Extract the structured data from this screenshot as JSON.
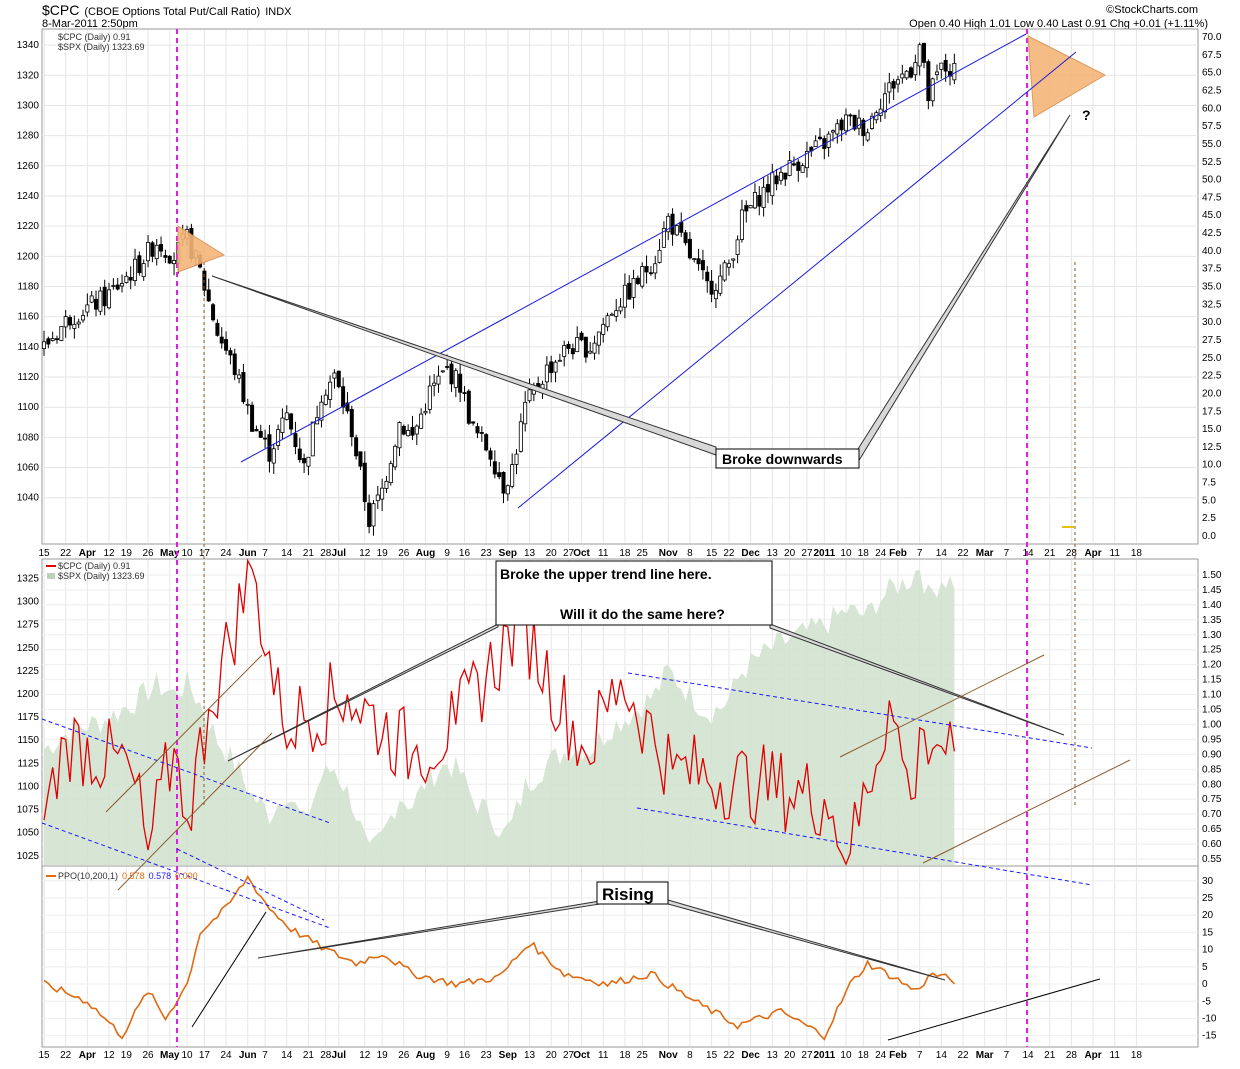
{
  "header": {
    "symbol": "$CPC",
    "description": "(CBOE Options Total Put/Call Ratio)",
    "exchange": "INDX",
    "datetime": "8-Mar-2011 2:50pm",
    "quote": "Open 0.40  High 1.01  Low 0.40  Last 0.91  Chg +0.01 (+1.11%)",
    "brand": "©StockCharts.com"
  },
  "colors": {
    "candle": "#000000",
    "trend_blue": "#1a1adb",
    "dashed_blue": "#1a1aff",
    "magenta": "#e020e0",
    "cpc_line": "#e00000",
    "spx_area": "#cfe0cc",
    "ppo_line": "#e06a10",
    "brown": "#8b5a2b",
    "pennant": "#f5b57a"
  },
  "chart_data": [
    {
      "id": "price-panel",
      "type": "candlestick",
      "legend": [
        "$CPC (Daily) 0.91",
        "$SPX (Daily) 1323.69"
      ],
      "left_axis": {
        "min": 1010,
        "max": 1350,
        "ticks": [
          1040,
          1060,
          1080,
          1100,
          1120,
          1140,
          1160,
          1180,
          1200,
          1220,
          1240,
          1260,
          1280,
          1300,
          1320,
          1340
        ]
      },
      "right_axis": {
        "ticks": [
          "70.0",
          "67.5",
          "65.0",
          "62.5",
          "60.0",
          "57.5",
          "55.0",
          "52.5",
          "50.0",
          "47.5",
          "45.0",
          "42.5",
          "40.0",
          "37.5",
          "35.0",
          "32.5",
          "30.0",
          "27.5",
          "25.0",
          "22.5",
          "20.0",
          "17.5",
          "15.0",
          "12.5",
          "10.0",
          "7.5",
          "5.0",
          "2.5",
          "0.0"
        ]
      },
      "waypoints": [
        {
          "d": 0,
          "v": 1140
        },
        {
          "d": 6,
          "v": 1160
        },
        {
          "d": 14,
          "v": 1172
        },
        {
          "d": 22,
          "v": 1195
        },
        {
          "d": 26,
          "v": 1210
        },
        {
          "d": 30,
          "v": 1200
        },
        {
          "d": 33,
          "v": 1212
        },
        {
          "d": 36,
          "v": 1190
        },
        {
          "d": 40,
          "v": 1150
        },
        {
          "d": 44,
          "v": 1125
        },
        {
          "d": 48,
          "v": 1090
        },
        {
          "d": 52,
          "v": 1070
        },
        {
          "d": 56,
          "v": 1095
        },
        {
          "d": 60,
          "v": 1060
        },
        {
          "d": 64,
          "v": 1110
        },
        {
          "d": 67,
          "v": 1120
        },
        {
          "d": 71,
          "v": 1085
        },
        {
          "d": 75,
          "v": 1025
        },
        {
          "d": 78,
          "v": 1045
        },
        {
          "d": 82,
          "v": 1090
        },
        {
          "d": 85,
          "v": 1080
        },
        {
          "d": 89,
          "v": 1110
        },
        {
          "d": 93,
          "v": 1125
        },
        {
          "d": 96,
          "v": 1115
        },
        {
          "d": 99,
          "v": 1085
        },
        {
          "d": 103,
          "v": 1070
        },
        {
          "d": 106,
          "v": 1048
        },
        {
          "d": 108,
          "v": 1060
        },
        {
          "d": 111,
          "v": 1100
        },
        {
          "d": 116,
          "v": 1125
        },
        {
          "d": 121,
          "v": 1140
        },
        {
          "d": 126,
          "v": 1140
        },
        {
          "d": 131,
          "v": 1165
        },
        {
          "d": 136,
          "v": 1180
        },
        {
          "d": 141,
          "v": 1200
        },
        {
          "d": 144,
          "v": 1225
        },
        {
          "d": 147,
          "v": 1210
        },
        {
          "d": 150,
          "v": 1195
        },
        {
          "d": 153,
          "v": 1180
        },
        {
          "d": 156,
          "v": 1185
        },
        {
          "d": 158,
          "v": 1195
        },
        {
          "d": 161,
          "v": 1225
        },
        {
          "d": 165,
          "v": 1240
        },
        {
          "d": 170,
          "v": 1255
        },
        {
          "d": 175,
          "v": 1265
        },
        {
          "d": 180,
          "v": 1275
        },
        {
          "d": 185,
          "v": 1290
        },
        {
          "d": 190,
          "v": 1285
        },
        {
          "d": 192,
          "v": 1300
        },
        {
          "d": 196,
          "v": 1315
        },
        {
          "d": 200,
          "v": 1325
        },
        {
          "d": 202,
          "v": 1340
        },
        {
          "d": 204,
          "v": 1305
        },
        {
          "d": 207,
          "v": 1325
        },
        {
          "d": 210,
          "v": 1322
        }
      ],
      "annotations": [
        {
          "text": "Broke downwards"
        },
        {
          "text": "?"
        }
      ]
    },
    {
      "id": "cpc-panel",
      "type": "line",
      "legend": [
        "$CPC (Daily) 0.91",
        "$SPX (Daily) 1323.69"
      ],
      "left_axis": {
        "min": 1015,
        "max": 1345,
        "ticks": [
          1025,
          1050,
          1075,
          1100,
          1125,
          1150,
          1175,
          1200,
          1225,
          1250,
          1275,
          1300,
          1325
        ]
      },
      "right_axis": {
        "min": 0.53,
        "max": 1.55,
        "ticks": [
          "1.50",
          "1.45",
          "1.40",
          "1.35",
          "1.30",
          "1.25",
          "1.20",
          "1.15",
          "1.10",
          "1.05",
          "1.00",
          "0.95",
          "0.90",
          "0.85",
          "0.80",
          "0.75",
          "0.70",
          "0.65",
          "0.60",
          "0.55"
        ]
      },
      "cpc_pivots": [
        {
          "d": 0,
          "v": 0.68
        },
        {
          "d": 5,
          "v": 0.95
        },
        {
          "d": 20,
          "v": 0.85
        },
        {
          "d": 24,
          "v": 0.58
        },
        {
          "d": 30,
          "v": 0.92
        },
        {
          "d": 33,
          "v": 0.68
        },
        {
          "d": 38,
          "v": 1.05
        },
        {
          "d": 48,
          "v": 1.52
        },
        {
          "d": 55,
          "v": 1.0
        },
        {
          "d": 70,
          "v": 1.1
        },
        {
          "d": 85,
          "v": 0.9
        },
        {
          "d": 95,
          "v": 1.0
        },
        {
          "d": 110,
          "v": 1.35
        },
        {
          "d": 125,
          "v": 0.9
        },
        {
          "d": 133,
          "v": 1.15
        },
        {
          "d": 145,
          "v": 0.85
        },
        {
          "d": 165,
          "v": 0.8
        },
        {
          "d": 180,
          "v": 0.75
        },
        {
          "d": 186,
          "v": 0.57
        },
        {
          "d": 195,
          "v": 1.08
        },
        {
          "d": 200,
          "v": 0.75
        },
        {
          "d": 203,
          "v": 0.98
        },
        {
          "d": 210,
          "v": 0.91
        }
      ],
      "annotations": [
        {
          "text": "Broke the upper trend line here."
        },
        {
          "text": "Will it do the same here?"
        }
      ]
    },
    {
      "id": "ppo-panel",
      "type": "line",
      "legend": [
        "PPO(10,200,1)",
        "0.578",
        "0.578",
        "0.000"
      ],
      "right_axis": {
        "min": -18,
        "max": 34,
        "ticks": [
          "30",
          "25",
          "20",
          "15",
          "10",
          "5",
          "0",
          "-5",
          "-10",
          "-15"
        ]
      },
      "ppo_pivots": [
        {
          "d": 0,
          "v": 0
        },
        {
          "d": 10,
          "v": -5
        },
        {
          "d": 18,
          "v": -15
        },
        {
          "d": 24,
          "v": -2
        },
        {
          "d": 28,
          "v": -10
        },
        {
          "d": 33,
          "v": 0
        },
        {
          "d": 36,
          "v": 15
        },
        {
          "d": 42,
          "v": 22
        },
        {
          "d": 47,
          "v": 31
        },
        {
          "d": 52,
          "v": 22
        },
        {
          "d": 57,
          "v": 16
        },
        {
          "d": 65,
          "v": 10
        },
        {
          "d": 72,
          "v": 6
        },
        {
          "d": 78,
          "v": 9
        },
        {
          "d": 85,
          "v": 3
        },
        {
          "d": 95,
          "v": 0
        },
        {
          "d": 105,
          "v": 2
        },
        {
          "d": 112,
          "v": 12
        },
        {
          "d": 120,
          "v": 3
        },
        {
          "d": 130,
          "v": 0
        },
        {
          "d": 140,
          "v": 3
        },
        {
          "d": 150,
          "v": -5
        },
        {
          "d": 160,
          "v": -12
        },
        {
          "d": 170,
          "v": -8
        },
        {
          "d": 180,
          "v": -15
        },
        {
          "d": 186,
          "v": 0
        },
        {
          "d": 190,
          "v": 6
        },
        {
          "d": 196,
          "v": 2
        },
        {
          "d": 201,
          "v": -2
        },
        {
          "d": 205,
          "v": 3
        },
        {
          "d": 210,
          "v": 1
        }
      ],
      "annotations": [
        {
          "text": "Rising"
        }
      ]
    }
  ],
  "x_axis": {
    "labels": [
      {
        "d": 0,
        "t": "15"
      },
      {
        "d": 5,
        "t": "22"
      },
      {
        "d": 10,
        "t": "Apr"
      },
      {
        "d": 15,
        "t": "12"
      },
      {
        "d": 19,
        "t": "19"
      },
      {
        "d": 24,
        "t": "26"
      },
      {
        "d": 29,
        "t": "May"
      },
      {
        "d": 33,
        "t": "10"
      },
      {
        "d": 37,
        "t": "17"
      },
      {
        "d": 42,
        "t": "24"
      },
      {
        "d": 47,
        "t": "Jun"
      },
      {
        "d": 51,
        "t": "7"
      },
      {
        "d": 56,
        "t": "14"
      },
      {
        "d": 61,
        "t": "21"
      },
      {
        "d": 65,
        "t": "28"
      },
      {
        "d": 68,
        "t": "Jul"
      },
      {
        "d": 74,
        "t": "12"
      },
      {
        "d": 78,
        "t": "19"
      },
      {
        "d": 83,
        "t": "26"
      },
      {
        "d": 88,
        "t": "Aug"
      },
      {
        "d": 93,
        "t": "9"
      },
      {
        "d": 97,
        "t": "16"
      },
      {
        "d": 102,
        "t": "23"
      },
      {
        "d": 107,
        "t": "Sep"
      },
      {
        "d": 112,
        "t": "13"
      },
      {
        "d": 117,
        "t": "20"
      },
      {
        "d": 121,
        "t": "27"
      },
      {
        "d": 124,
        "t": "Oct"
      },
      {
        "d": 129,
        "t": "11"
      },
      {
        "d": 134,
        "t": "18"
      },
      {
        "d": 138,
        "t": "25"
      },
      {
        "d": 144,
        "t": "Nov"
      },
      {
        "d": 149,
        "t": "8"
      },
      {
        "d": 154,
        "t": "15"
      },
      {
        "d": 158,
        "t": "22"
      },
      {
        "d": 163,
        "t": "Dec"
      },
      {
        "d": 168,
        "t": "13"
      },
      {
        "d": 172,
        "t": "20"
      },
      {
        "d": 176,
        "t": "27"
      },
      {
        "d": 180,
        "t": "2011"
      },
      {
        "d": 185,
        "t": "10"
      },
      {
        "d": 189,
        "t": "18"
      },
      {
        "d": 193,
        "t": "24"
      },
      {
        "d": 197,
        "t": "Feb"
      },
      {
        "d": 202,
        "t": "7"
      },
      {
        "d": 207,
        "t": "14"
      },
      {
        "d": 212,
        "t": "22"
      },
      {
        "d": 217,
        "t": "Mar"
      },
      {
        "d": 222,
        "t": "7"
      },
      {
        "d": 227,
        "t": "14"
      },
      {
        "d": 232,
        "t": "21"
      },
      {
        "d": 237,
        "t": "28"
      },
      {
        "d": 242,
        "t": "Apr"
      },
      {
        "d": 247,
        "t": "11"
      },
      {
        "d": 252,
        "t": "18"
      }
    ]
  }
}
